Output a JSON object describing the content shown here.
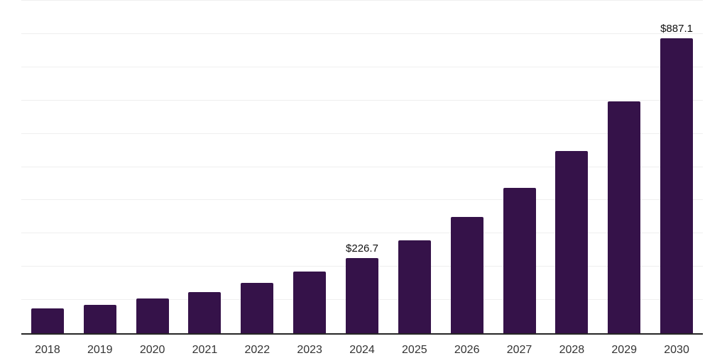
{
  "chart_data": {
    "type": "bar",
    "title": "",
    "xlabel": "",
    "ylabel": "",
    "categories": [
      "2018",
      "2019",
      "2020",
      "2021",
      "2022",
      "2023",
      "2024",
      "2025",
      "2026",
      "2027",
      "2028",
      "2029",
      "2030"
    ],
    "values": [
      75,
      85,
      105,
      124,
      151,
      186,
      226.7,
      279,
      350,
      437,
      548,
      697,
      887.1
    ],
    "data_labels": [
      "",
      "",
      "",
      "",
      "",
      "",
      "$226.7",
      "",
      "",
      "",
      "",
      "",
      "$887.1"
    ],
    "values_note": "only 2024 and 2030 bars show printed data labels; other values estimated from bar heights against gridlines",
    "ylim": [
      0,
      1000
    ],
    "gridline_step": 100,
    "grid": "horizontal only, no y-axis tick labels, no y-axis line",
    "legend": "none",
    "colors": {
      "bar_fill": "#351249",
      "axis_line": "#262626",
      "gridline": "#efefef",
      "x_tick_label": "#333333",
      "value_label": "#111111",
      "background": "#ffffff"
    }
  }
}
